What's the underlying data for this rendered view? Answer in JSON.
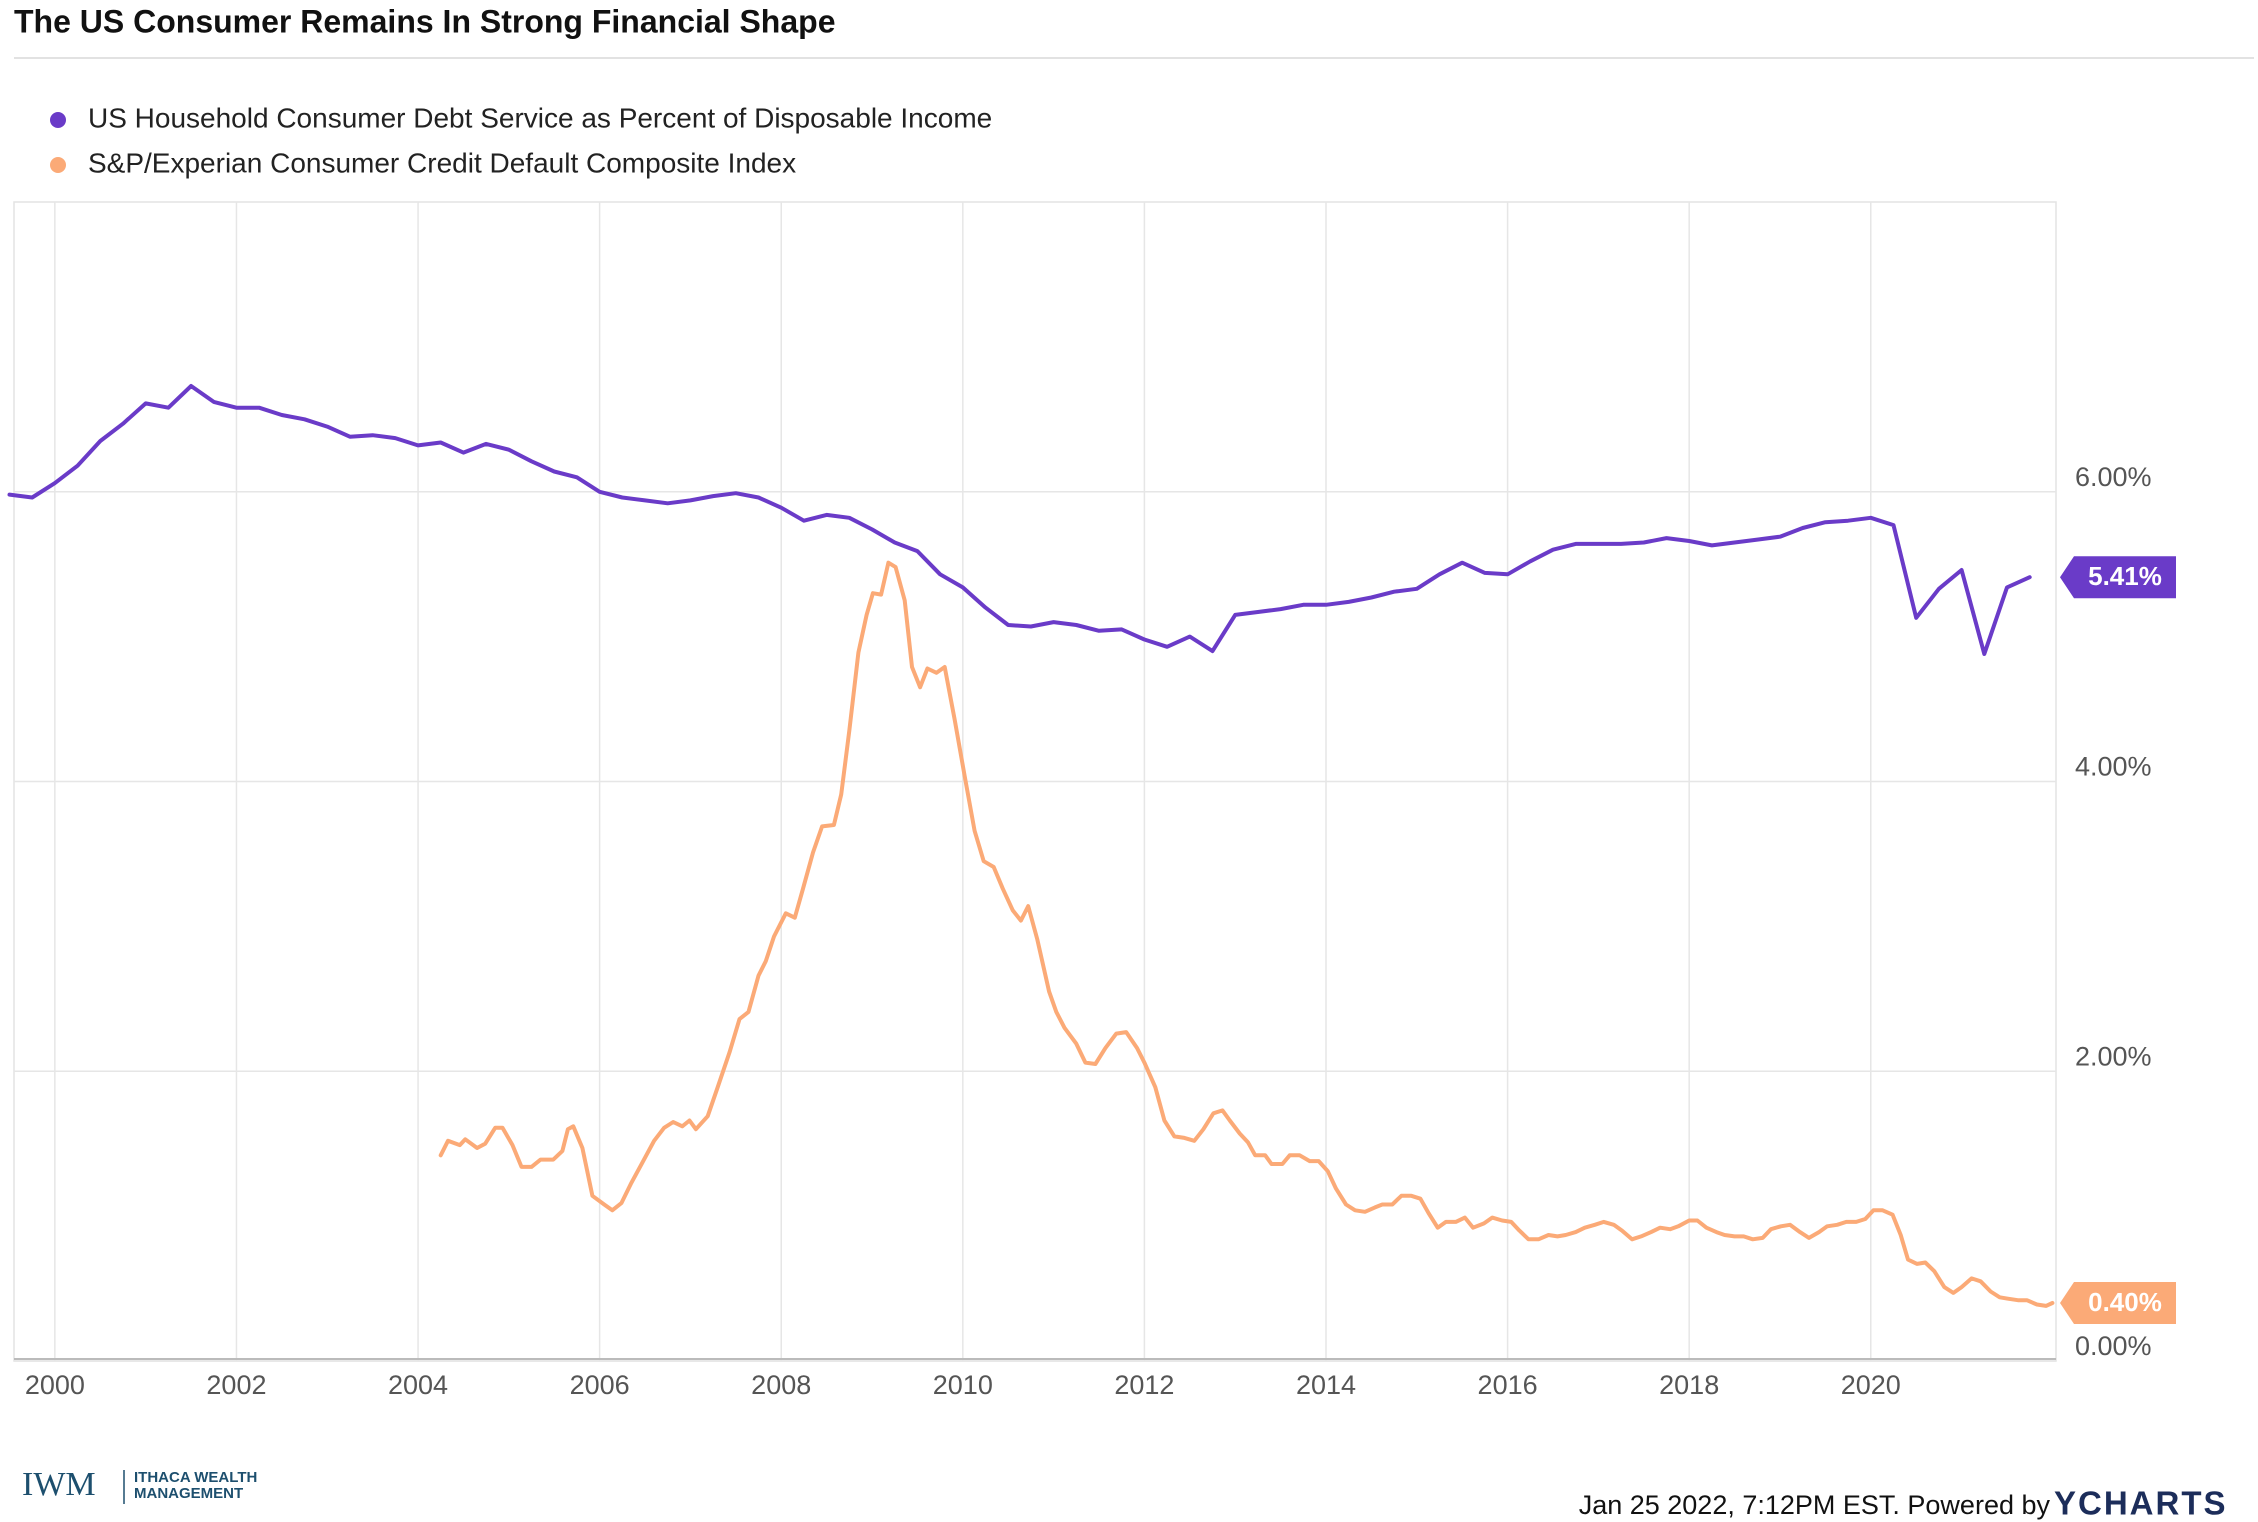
{
  "chart_data": {
    "type": "line",
    "title": "The US Consumer Remains In Strong Financial Shape",
    "xlim": [
      1999.55,
      2022.04
    ],
    "xticks": [
      2000,
      2002,
      2004,
      2006,
      2008,
      2010,
      2012,
      2014,
      2016,
      2018,
      2020
    ],
    "ylim": [
      0,
      8
    ],
    "yticks": [
      {
        "value": 0,
        "label": "0.00%"
      },
      {
        "value": 2,
        "label": "2.00%"
      },
      {
        "value": 4,
        "label": "4.00%"
      },
      {
        "value": 6,
        "label": "6.00%"
      }
    ],
    "grid": true,
    "legend": "top-left",
    "series": [
      {
        "name": "US Household Consumer Debt Service as Percent of Disposable Income",
        "color": "#6a3bc8",
        "end_label": "5.41%",
        "x": [
          1999.5,
          1999.75,
          2000,
          2000.25,
          2000.5,
          2000.75,
          2001,
          2001.25,
          2001.5,
          2001.75,
          2002,
          2002.25,
          2002.5,
          2002.75,
          2003,
          2003.25,
          2003.5,
          2003.75,
          2004,
          2004.25,
          2004.5,
          2004.75,
          2005,
          2005.25,
          2005.5,
          2005.75,
          2006,
          2006.25,
          2006.5,
          2006.75,
          2007,
          2007.25,
          2007.5,
          2007.75,
          2008,
          2008.25,
          2008.5,
          2008.75,
          2009,
          2009.25,
          2009.5,
          2009.75,
          2010,
          2010.25,
          2010.5,
          2010.75,
          2011,
          2011.25,
          2011.5,
          2011.75,
          2012,
          2012.25,
          2012.5,
          2012.75,
          2013,
          2013.25,
          2013.5,
          2013.75,
          2014,
          2014.25,
          2014.5,
          2014.75,
          2015,
          2015.25,
          2015.5,
          2015.75,
          2016,
          2016.25,
          2016.5,
          2016.75,
          2017,
          2017.25,
          2017.5,
          2017.75,
          2018,
          2018.25,
          2018.5,
          2018.75,
          2019,
          2019.25,
          2019.5,
          2019.75,
          2020,
          2020.25,
          2020.5,
          2020.75,
          2021,
          2021.25,
          2021.5,
          2021.75
        ],
        "values": [
          5.98,
          5.96,
          6.06,
          6.18,
          6.35,
          6.47,
          6.61,
          6.58,
          6.73,
          6.62,
          6.58,
          6.58,
          6.53,
          6.5,
          6.45,
          6.38,
          6.39,
          6.37,
          6.32,
          6.34,
          6.27,
          6.33,
          6.29,
          6.21,
          6.14,
          6.1,
          6.0,
          5.96,
          5.94,
          5.92,
          5.94,
          5.97,
          5.99,
          5.96,
          5.89,
          5.8,
          5.84,
          5.82,
          5.74,
          5.65,
          5.59,
          5.43,
          5.34,
          5.2,
          5.08,
          5.07,
          5.1,
          5.08,
          5.04,
          5.05,
          4.98,
          4.93,
          5.0,
          4.9,
          5.15,
          5.17,
          5.19,
          5.22,
          5.22,
          5.24,
          5.27,
          5.31,
          5.33,
          5.43,
          5.51,
          5.44,
          5.43,
          5.52,
          5.6,
          5.64,
          5.64,
          5.64,
          5.65,
          5.68,
          5.66,
          5.63,
          5.65,
          5.67,
          5.69,
          5.75,
          5.79,
          5.8,
          5.82,
          5.77,
          5.13,
          5.33,
          5.46,
          4.88,
          5.34,
          5.41
        ]
      },
      {
        "name": "S&P/Experian Consumer Credit Default Composite Index",
        "color": "#fbaa77",
        "end_label": "0.40%",
        "x": [
          2004.25,
          2004.33,
          2004.46,
          2004.52,
          2004.65,
          2004.74,
          2004.85,
          2004.93,
          2005.04,
          2005.14,
          2005.25,
          2005.35,
          2005.49,
          2005.59,
          2005.65,
          2005.71,
          2005.81,
          2005.92,
          2006.05,
          2006.14,
          2006.24,
          2006.35,
          2006.48,
          2006.6,
          2006.71,
          2006.81,
          2006.91,
          2006.99,
          2007.06,
          2007.19,
          2007.3,
          2007.43,
          2007.54,
          2007.64,
          2007.75,
          2007.83,
          2007.92,
          2008.05,
          2008.15,
          2008.24,
          2008.35,
          2008.45,
          2008.58,
          2008.66,
          2008.75,
          2008.85,
          2008.94,
          2009.01,
          2009.1,
          2009.18,
          2009.26,
          2009.36,
          2009.44,
          2009.53,
          2009.61,
          2009.71,
          2009.8,
          2009.91,
          2010.02,
          2010.13,
          2010.23,
          2010.34,
          2010.44,
          2010.55,
          2010.64,
          2010.72,
          2010.82,
          2010.95,
          2011.03,
          2011.12,
          2011.25,
          2011.35,
          2011.46,
          2011.57,
          2011.69,
          2011.8,
          2011.92,
          2012,
          2012.12,
          2012.22,
          2012.33,
          2012.44,
          2012.55,
          2012.65,
          2012.76,
          2012.86,
          2012.94,
          2013.05,
          2013.14,
          2013.22,
          2013.33,
          2013.4,
          2013.52,
          2013.6,
          2013.71,
          2013.82,
          2013.92,
          2014.02,
          2014.11,
          2014.22,
          2014.32,
          2014.43,
          2014.54,
          2014.62,
          2014.73,
          2014.83,
          2014.94,
          2015.04,
          2015.13,
          2015.23,
          2015.32,
          2015.43,
          2015.53,
          2015.62,
          2015.74,
          2015.83,
          2015.94,
          2016.04,
          2016.13,
          2016.23,
          2016.34,
          2016.45,
          2016.55,
          2016.64,
          2016.75,
          2016.85,
          2016.96,
          2017.06,
          2017.17,
          2017.26,
          2017.37,
          2017.47,
          2017.58,
          2017.68,
          2017.79,
          2017.88,
          2018,
          2018.09,
          2018.19,
          2018.3,
          2018.39,
          2018.5,
          2018.6,
          2018.7,
          2018.81,
          2018.9,
          2019.01,
          2019.11,
          2019.22,
          2019.32,
          2019.43,
          2019.52,
          2019.63,
          2019.73,
          2019.84,
          2019.94,
          2020.03,
          2020.13,
          2020.24,
          2020.33,
          2020.41,
          2020.51,
          2020.6,
          2020.7,
          2020.81,
          2020.91,
          2021,
          2021.11,
          2021.21,
          2021.32,
          2021.42,
          2021.51,
          2021.62,
          2021.72,
          2021.83,
          2021.93,
          2022
        ],
        "values": [
          1.42,
          1.52,
          1.49,
          1.53,
          1.47,
          1.5,
          1.61,
          1.61,
          1.49,
          1.34,
          1.34,
          1.39,
          1.39,
          1.45,
          1.6,
          1.62,
          1.47,
          1.14,
          1.08,
          1.04,
          1.09,
          1.23,
          1.38,
          1.52,
          1.61,
          1.65,
          1.62,
          1.66,
          1.6,
          1.69,
          1.89,
          2.13,
          2.36,
          2.41,
          2.66,
          2.76,
          2.93,
          3.09,
          3.06,
          3.26,
          3.51,
          3.69,
          3.7,
          3.91,
          4.35,
          4.89,
          5.15,
          5.3,
          5.29,
          5.51,
          5.48,
          5.25,
          4.79,
          4.65,
          4.78,
          4.75,
          4.79,
          4.43,
          4.04,
          3.66,
          3.45,
          3.41,
          3.26,
          3.11,
          3.04,
          3.14,
          2.91,
          2.55,
          2.41,
          2.3,
          2.19,
          2.06,
          2.05,
          2.16,
          2.26,
          2.27,
          2.16,
          2.06,
          1.89,
          1.66,
          1.55,
          1.54,
          1.52,
          1.6,
          1.71,
          1.73,
          1.66,
          1.57,
          1.51,
          1.42,
          1.42,
          1.36,
          1.36,
          1.42,
          1.42,
          1.38,
          1.38,
          1.31,
          1.19,
          1.08,
          1.04,
          1.03,
          1.06,
          1.08,
          1.08,
          1.14,
          1.14,
          1.12,
          1.02,
          0.92,
          0.96,
          0.96,
          0.99,
          0.92,
          0.95,
          0.99,
          0.97,
          0.96,
          0.9,
          0.84,
          0.84,
          0.87,
          0.86,
          0.87,
          0.89,
          0.92,
          0.94,
          0.96,
          0.94,
          0.9,
          0.84,
          0.86,
          0.89,
          0.92,
          0.91,
          0.93,
          0.97,
          0.97,
          0.92,
          0.89,
          0.87,
          0.86,
          0.86,
          0.84,
          0.85,
          0.91,
          0.93,
          0.94,
          0.89,
          0.85,
          0.89,
          0.93,
          0.94,
          0.96,
          0.96,
          0.98,
          1.04,
          1.04,
          1.01,
          0.87,
          0.7,
          0.67,
          0.68,
          0.62,
          0.51,
          0.47,
          0.51,
          0.57,
          0.55,
          0.48,
          0.44,
          0.43,
          0.42,
          0.42,
          0.39,
          0.38,
          0.4
        ]
      }
    ]
  },
  "footer": {
    "timestamp": "Jan 25 2022, 7:12PM EST. Powered by",
    "brand": "YCHARTS"
  },
  "logo": {
    "mark": "IWM",
    "line1": "ITHACA WEALTH",
    "line2": "MANAGEMENT"
  }
}
